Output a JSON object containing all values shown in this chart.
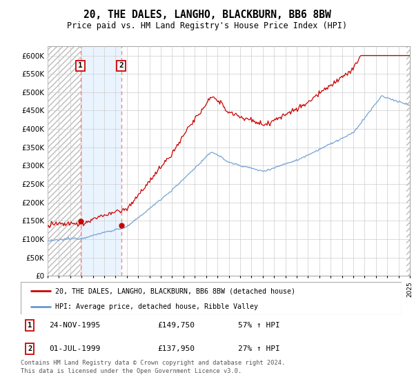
{
  "title": "20, THE DALES, LANGHO, BLACKBURN, BB6 8BW",
  "subtitle": "Price paid vs. HM Land Registry's House Price Index (HPI)",
  "ylim": [
    0,
    625000
  ],
  "yticks": [
    0,
    50000,
    100000,
    150000,
    200000,
    250000,
    300000,
    350000,
    400000,
    450000,
    500000,
    550000,
    600000
  ],
  "ytick_labels": [
    "£0",
    "£50K",
    "£100K",
    "£150K",
    "£200K",
    "£250K",
    "£300K",
    "£350K",
    "£400K",
    "£450K",
    "£500K",
    "£550K",
    "£600K"
  ],
  "sale1_year": 1995.9,
  "sale1_price": 149750,
  "sale2_year": 1999.5,
  "sale2_price": 137950,
  "legend_line1": "20, THE DALES, LANGHO, BLACKBURN, BB6 8BW (detached house)",
  "legend_line2": "HPI: Average price, detached house, Ribble Valley",
  "table_row1": [
    "1",
    "24-NOV-1995",
    "£149,750",
    "57% ↑ HPI"
  ],
  "table_row2": [
    "2",
    "01-JUL-1999",
    "£137,950",
    "27% ↑ HPI"
  ],
  "footer": "Contains HM Land Registry data © Crown copyright and database right 2024.\nThis data is licensed under the Open Government Licence v3.0.",
  "price_line_color": "#cc0000",
  "hpi_line_color": "#6699cc",
  "vline_color": "#ee8888",
  "shade_between_sales": "#ddeeff"
}
